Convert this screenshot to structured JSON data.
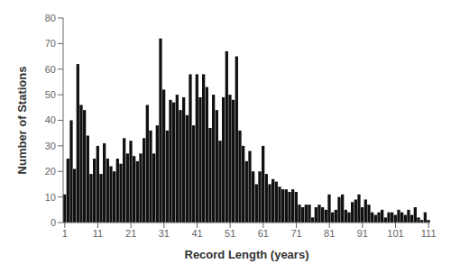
{
  "chart_data": {
    "type": "bar",
    "xlabel": "Record Length (years)",
    "ylabel": "Number of Stations",
    "x": [
      1,
      2,
      3,
      4,
      5,
      6,
      7,
      8,
      9,
      10,
      11,
      12,
      13,
      14,
      15,
      16,
      17,
      18,
      19,
      20,
      21,
      22,
      23,
      24,
      25,
      26,
      27,
      28,
      29,
      30,
      31,
      32,
      33,
      34,
      35,
      36,
      37,
      38,
      39,
      40,
      41,
      42,
      43,
      44,
      45,
      46,
      47,
      48,
      49,
      50,
      51,
      52,
      53,
      54,
      55,
      56,
      57,
      58,
      59,
      60,
      61,
      62,
      63,
      64,
      65,
      66,
      67,
      68,
      69,
      70,
      71,
      72,
      73,
      74,
      75,
      76,
      77,
      78,
      79,
      80,
      81,
      82,
      83,
      84,
      85,
      86,
      87,
      88,
      89,
      90,
      91,
      92,
      93,
      94,
      95,
      96,
      97,
      98,
      99,
      100,
      101,
      102,
      103,
      104,
      105,
      106,
      107,
      108,
      109,
      110,
      111
    ],
    "values": [
      11,
      25,
      40,
      21,
      62,
      46,
      44,
      34,
      19,
      25,
      30,
      19,
      31,
      25,
      22,
      20,
      25,
      23,
      33,
      27,
      32,
      26,
      24,
      27,
      33,
      46,
      36,
      27,
      38,
      72,
      52,
      36,
      48,
      47,
      50,
      44,
      49,
      42,
      58,
      38,
      58,
      49,
      58,
      53,
      37,
      50,
      44,
      32,
      49,
      67,
      50,
      48,
      65,
      36,
      30,
      24,
      28,
      20,
      15,
      20,
      30,
      19,
      15,
      17,
      16,
      14,
      13,
      13,
      12,
      13,
      12,
      7,
      6,
      7,
      7,
      2,
      6,
      7,
      6,
      5,
      11,
      4,
      5,
      10,
      11,
      5,
      4,
      8,
      9,
      11,
      6,
      9,
      7,
      4,
      3,
      4,
      5,
      2,
      4,
      4,
      3,
      5,
      4,
      3,
      5,
      3,
      6,
      2,
      1,
      4,
      1
    ],
    "color": "#111111",
    "xlim": [
      0.5,
      111.5
    ],
    "xticks": [
      1,
      11,
      21,
      31,
      41,
      51,
      61,
      71,
      81,
      91,
      101,
      111
    ],
    "ylim": [
      0,
      80
    ],
    "yticks": [
      0,
      10,
      20,
      30,
      40,
      50,
      60,
      70,
      80
    ],
    "grid": false
  }
}
